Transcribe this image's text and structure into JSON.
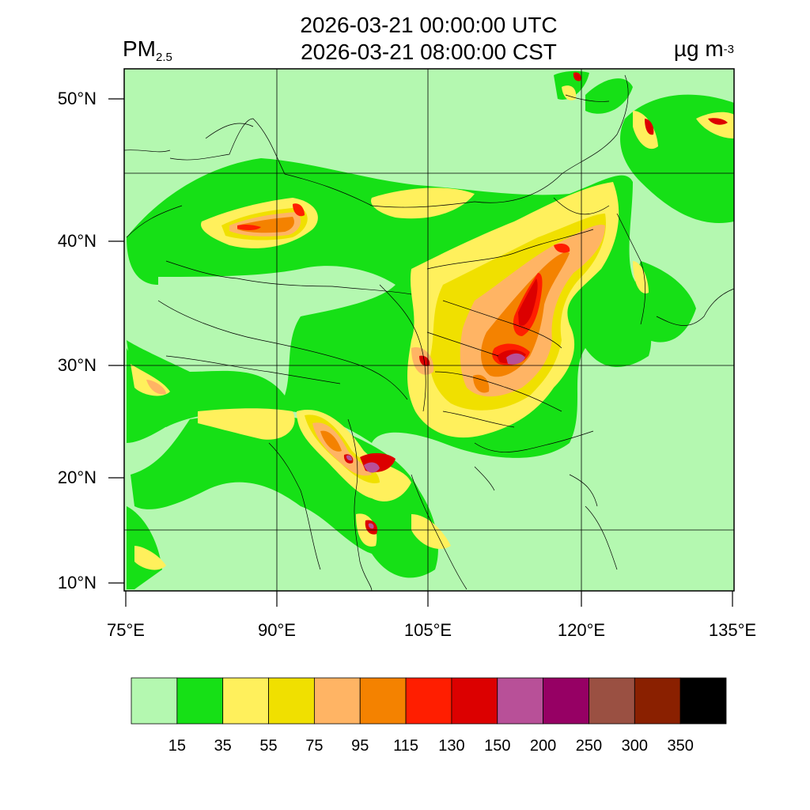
{
  "title": {
    "line1": "2026-03-21 00:00:00 UTC",
    "line2": "2026-03-21 08:00:00 CST"
  },
  "variable": {
    "name": "PM",
    "subscript": "2.5"
  },
  "units": {
    "base": "µg m",
    "exponent": "-3"
  },
  "axes": {
    "lat_labels": [
      "50°N",
      "40°N",
      "30°N",
      "20°N",
      "10°N"
    ],
    "lon_labels": [
      "75°E",
      "90°E",
      "105°E",
      "120°E",
      "135°E"
    ]
  },
  "colorbar": {
    "labels": [
      "15",
      "35",
      "55",
      "75",
      "95",
      "115",
      "130",
      "150",
      "200",
      "250",
      "300",
      "350"
    ],
    "colors": [
      "#b4f8b0",
      "#16e016",
      "#fff05c",
      "#f0e000",
      "#ffb464",
      "#f48200",
      "#ff1e00",
      "#dc0000",
      "#b85098",
      "#960064",
      "#9a5042",
      "#8a2000",
      "#000000"
    ]
  }
}
